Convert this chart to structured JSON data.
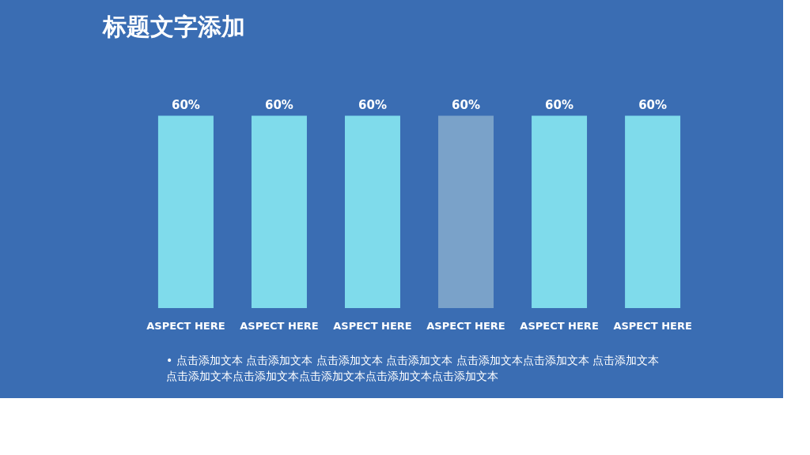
{
  "chart_data": {
    "type": "bar",
    "title": "标题文字添加",
    "categories": [
      "ASPECT HERE",
      "ASPECT HERE",
      "ASPECT HERE",
      "ASPECT HERE",
      "ASPECT HERE",
      "ASPECT HERE"
    ],
    "values": [
      60,
      60,
      60,
      60,
      60,
      60
    ],
    "colors": [
      "#7fdbeb",
      "#7fdbeb",
      "#7fdbeb",
      "#7aa2c9",
      "#7fdbeb",
      "#7fdbeb"
    ],
    "value_labels": [
      "60%",
      "60%",
      "60%",
      "60%",
      "60%",
      "60%"
    ],
    "annotations": [
      "• 点击添加文本 点击添加文本  点击添加文本 点击添加文本  点击添加文本点击添加文本  点击添加文本点击添加文本点击添加文本点击添加文本点击添加文本点击添加文本"
    ],
    "grid": false
  }
}
